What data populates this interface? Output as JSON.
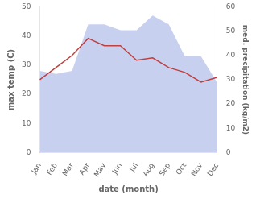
{
  "chart_data": {
    "type": "line",
    "categories": [
      "Jan",
      "Feb",
      "Mar",
      "Apr",
      "May",
      "Jun",
      "Jul",
      "Aug",
      "Sep",
      "Oct",
      "Nov",
      "Dec"
    ],
    "series": [
      {
        "type": "area",
        "color": "#c8d0f0",
        "values": [
          28,
          27,
          28,
          44,
          44,
          42,
          42,
          47,
          44,
          33,
          33,
          24
        ]
      },
      {
        "type": "line",
        "color": "#c04040",
        "axis": "y2",
        "values": [
          30,
          35,
          40,
          47,
          44,
          44,
          38,
          39,
          35,
          33,
          29,
          31
        ]
      }
    ],
    "xlabel": "date (month)",
    "ylabel": "max temp (C)",
    "y2label": "med. precipitation (kg/m2)",
    "ylim": [
      0,
      50
    ],
    "yticks": [
      0,
      10,
      20,
      30,
      40,
      50
    ],
    "y2lim": [
      0,
      60
    ],
    "y2ticks": [
      0,
      10,
      20,
      30,
      40,
      50,
      60
    ],
    "grid": false
  }
}
